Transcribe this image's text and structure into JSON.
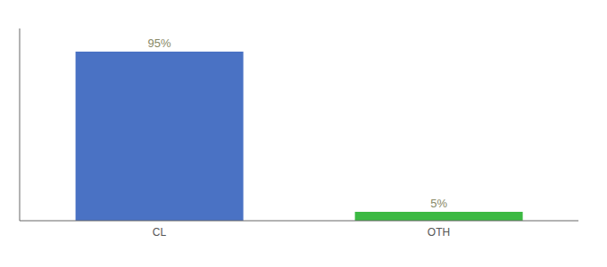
{
  "chart_data": {
    "type": "bar",
    "categories": [
      "CL",
      "OTH"
    ],
    "values": [
      95,
      5
    ],
    "colors": [
      "#4a72c4",
      "#3cb943"
    ],
    "data_labels": true,
    "value_labels": [
      "95%",
      "5%"
    ],
    "ylim": [
      0,
      108
    ],
    "tick_labels": "x"
  }
}
